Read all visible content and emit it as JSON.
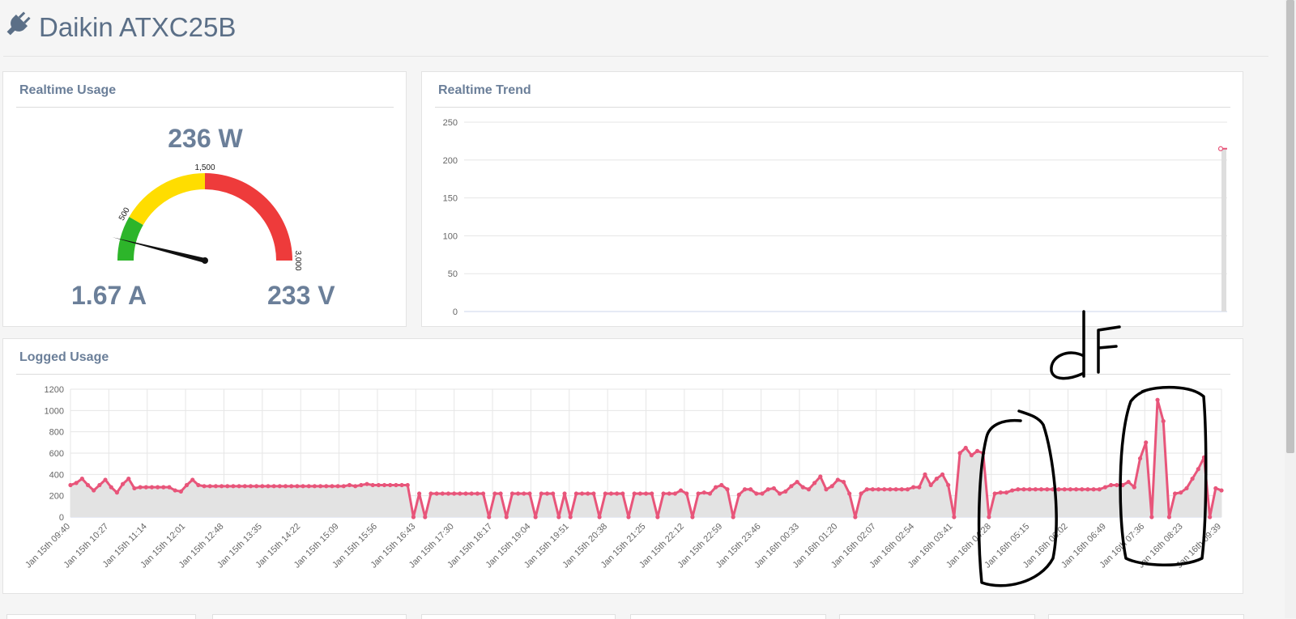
{
  "header": {
    "title": "Daikin ATXC25B",
    "icon": "plug-icon"
  },
  "realtime_usage": {
    "title": "Realtime Usage",
    "power": "236 W",
    "current": "1.67 A",
    "voltage": "233 V",
    "gauge": {
      "min": 0,
      "max": 3000,
      "value": 236,
      "labels": [
        "500",
        "1,500",
        "3,000"
      ],
      "bands": [
        {
          "from": 0,
          "to": 500,
          "color": "#2db52a"
        },
        {
          "from": 500,
          "to": 1500,
          "color": "#ffdd00"
        },
        {
          "from": 1500,
          "to": 3000,
          "color": "#ee3b3b"
        }
      ]
    }
  },
  "realtime_trend": {
    "title": "Realtime Trend",
    "chart_data": {
      "type": "area",
      "yticks": [
        "0",
        "50",
        "100",
        "150",
        "200",
        "250"
      ],
      "ylim": [
        0,
        250
      ],
      "points": [
        215,
        215
      ],
      "color": "#e8557a"
    }
  },
  "logged_usage": {
    "title": "Logged Usage",
    "chart_data": {
      "type": "area",
      "ylim": [
        0,
        1200
      ],
      "yticks": [
        "0",
        "200",
        "400",
        "600",
        "800",
        "1000",
        "1200"
      ],
      "xticks": [
        "Jan 15th 09:40",
        "Jan 15th 10:27",
        "Jan 15th 11:14",
        "Jan 15th 12:01",
        "Jan 15th 12:48",
        "Jan 15th 13:35",
        "Jan 15th 14:22",
        "Jan 15th 15:09",
        "Jan 15th 15:56",
        "Jan 15th 16:43",
        "Jan 15th 17:30",
        "Jan 15th 18:17",
        "Jan 15th 19:04",
        "Jan 15th 19:51",
        "Jan 15th 20:38",
        "Jan 15th 21:25",
        "Jan 15th 22:12",
        "Jan 15th 22:59",
        "Jan 15th 23:46",
        "Jan 16th 00:33",
        "Jan 16th 01:20",
        "Jan 16th 02:07",
        "Jan 16th 02:54",
        "Jan 16th 03:41",
        "Jan 16th 04:28",
        "Jan 16th 05:15",
        "Jan 16th 06:02",
        "Jan 16th 06:49",
        "Jan 16th 07:36",
        "Jan 16th 08:23",
        "Jan 16th 09:39"
      ],
      "series": [
        {
          "values": [
            300,
            320,
            360,
            300,
            250,
            300,
            350,
            280,
            230,
            310,
            360,
            270,
            280,
            280,
            280,
            280,
            280,
            280,
            250,
            240,
            300,
            350,
            300,
            290,
            290,
            290,
            290,
            290,
            290,
            290,
            290,
            290,
            290,
            290,
            290,
            290,
            290,
            290,
            290,
            290,
            290,
            290,
            290,
            290,
            290,
            290,
            290,
            290,
            300,
            290,
            300,
            310,
            300,
            300,
            300,
            300,
            300,
            300,
            300,
            0,
            220,
            0,
            220,
            220,
            220,
            220,
            220,
            220,
            220,
            220,
            220,
            220,
            0,
            220,
            220,
            0,
            220,
            220,
            220,
            220,
            0,
            220,
            220,
            220,
            0,
            220,
            0,
            220,
            220,
            220,
            220,
            0,
            220,
            220,
            220,
            220,
            0,
            220,
            220,
            220,
            220,
            0,
            220,
            220,
            220,
            250,
            220,
            0,
            220,
            230,
            220,
            280,
            300,
            260,
            0,
            210,
            260,
            260,
            220,
            220,
            260,
            270,
            220,
            240,
            290,
            330,
            280,
            260,
            320,
            380,
            260,
            290,
            350,
            330,
            220,
            0,
            220,
            260,
            260,
            260,
            260,
            260,
            260,
            260,
            260,
            280,
            280,
            400,
            300,
            360,
            400,
            300,
            0,
            600,
            650,
            580,
            620,
            600,
            0,
            220,
            230,
            230,
            250,
            260,
            260,
            260,
            260,
            260,
            260,
            260,
            260,
            260,
            260,
            260,
            260,
            260,
            260,
            260,
            280,
            300,
            300,
            300,
            330,
            280,
            550,
            700,
            0,
            1100,
            900,
            0,
            220,
            230,
            270,
            360,
            450,
            560,
            0,
            270,
            250
          ],
          "color": "#e8557a"
        }
      ]
    }
  },
  "annotation": {
    "handwritten_label": "dF"
  }
}
